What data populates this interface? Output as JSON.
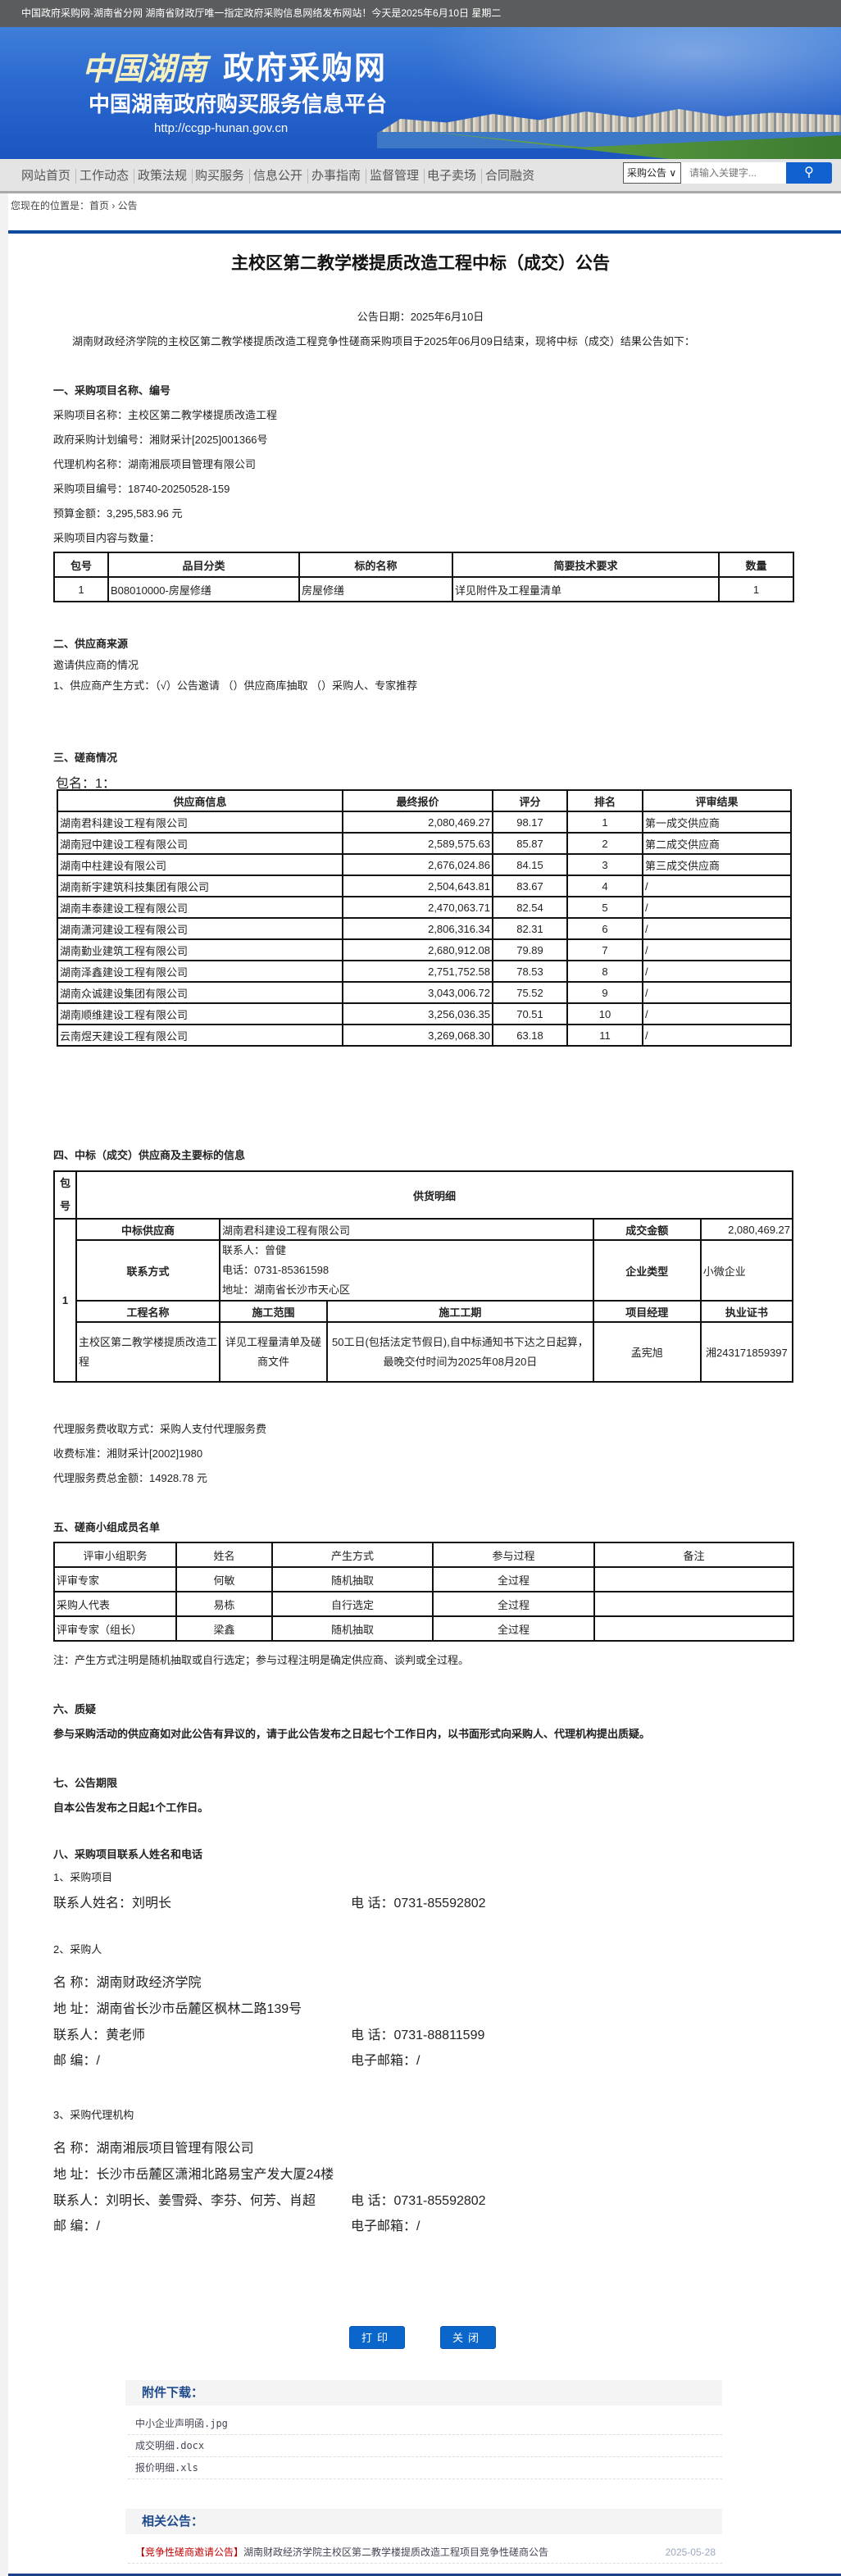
{
  "topbar": {
    "text": "中国政府采购网-湖南省分网  湖南省财政厅唯一指定政府采购信息网络发布网站！今天是2025年6月10日  星期二"
  },
  "banner": {
    "logo_calligraphy": "中国湖南",
    "title": "政府采购网",
    "subtitle": "中国湖南政府购买服务信息平台",
    "url": "http://ccgp-hunan.gov.cn"
  },
  "nav": {
    "items": [
      "网站首页",
      "工作动态",
      "政策法规",
      "购买服务",
      "信息公开",
      "办事指南",
      "监督管理",
      "电子卖场",
      "合同融资"
    ]
  },
  "search": {
    "select": "采购公告 ∨",
    "placeholder": "请输入关键字...",
    "icon": "search-icon"
  },
  "breadcrumb": {
    "text": "您现在的位置是：首页 › 公告"
  },
  "notice": {
    "title": "主校区第二教学楼提质改造工程中标（成交）公告",
    "date": "公告日期：2025年6月10日",
    "intro": "湖南财政经济学院的主校区第二教学楼提质改造工程竞争性磋商采购项目于2025年06月09日结束，现将中标（成交）结果公告如下：",
    "s1": {
      "heading": "一、采购项目名称、编号",
      "lines": [
        "采购项目名称：主校区第二教学楼提质改造工程",
        "政府采购计划编号：湘财采计[2025]001366号",
        "代理机构名称：湖南湘辰项目管理有限公司",
        "采购项目编号：18740-20250528-159",
        "预算金额：3,295,583.96 元",
        "采购项目内容与数量："
      ],
      "table": {
        "headers": [
          "包号",
          "品目分类",
          "标的名称",
          "简要技术要求",
          "数量"
        ],
        "rows": [
          [
            "1",
            "B08010000-房屋修缮",
            "房屋修缮",
            "详见附件及工程量清单",
            "1"
          ]
        ]
      }
    },
    "s2": {
      "heading": "二、供应商来源",
      "lines": [
        "邀请供应商的情况",
        "1、供应商产生方式：（√）公告邀请 （）供应商库抽取 （）采购人、专家推荐"
      ]
    },
    "s3": {
      "heading": "三、磋商情况",
      "package": "包名：1：",
      "table": {
        "headers": [
          "供应商信息",
          "最终报价",
          "评分",
          "排名",
          "评审结果"
        ],
        "rows": [
          [
            "湖南君科建设工程有限公司",
            "2,080,469.27",
            "98.17",
            "1",
            "第一成交供应商"
          ],
          [
            "湖南冠中建设工程有限公司",
            "2,589,575.63",
            "85.87",
            "2",
            "第二成交供应商"
          ],
          [
            "湖南中柱建设有限公司",
            "2,676,024.86",
            "84.15",
            "3",
            "第三成交供应商"
          ],
          [
            "湖南新宇建筑科技集团有限公司",
            "2,504,643.81",
            "83.67",
            "4",
            "/"
          ],
          [
            "湖南丰泰建设工程有限公司",
            "2,470,063.71",
            "82.54",
            "5",
            "/"
          ],
          [
            "湖南潇河建设工程有限公司",
            "2,806,316.34",
            "82.31",
            "6",
            "/"
          ],
          [
            "湖南勤业建筑工程有限公司",
            "2,680,912.08",
            "79.89",
            "7",
            "/"
          ],
          [
            "湖南泽鑫建设工程有限公司",
            "2,751,752.58",
            "78.53",
            "8",
            "/"
          ],
          [
            "湖南众诚建设集团有限公司",
            "3,043,006.72",
            "75.52",
            "9",
            "/"
          ],
          [
            "湖南顺维建设工程有限公司",
            "3,256,036.35",
            "70.51",
            "10",
            "/"
          ],
          [
            "云南煜天建设工程有限公司",
            "3,269,068.30",
            "63.18",
            "11",
            "/"
          ]
        ]
      }
    },
    "s4": {
      "heading": "四、中标（成交）供应商及主要标的信息",
      "table": {
        "pkg_header": "包号",
        "detail_header": "供货明细",
        "pkg": "1",
        "supplier_label": "中标供应商",
        "supplier": "湖南君科建设工程有限公司",
        "amount_label": "成交金额",
        "amount": "2,080,469.27",
        "contact_label": "联系方式",
        "contact": [
          "联系人：曾健",
          "电话：0731-85361598",
          "地址：湖南省长沙市天心区"
        ],
        "type_label": "企业类型",
        "type": "小微企业",
        "sub_headers": [
          "工程名称",
          "施工范围",
          "施工工期",
          "项目经理",
          "执业证书"
        ],
        "sub_row": [
          "主校区第二教学楼提质改造工程",
          "详见工程量清单及磋商文件",
          "50工日(包括法定节假日),自中标通知书下达之日起算，最晚交付时间为2025年08月20日",
          "孟宪旭",
          "湘243171859397"
        ]
      },
      "fee_lines": [
        "代理服务费收取方式：采购人支付代理服务费",
        "收费标准：湘财采计[2002]1980",
        "代理服务费总金额：14928.78 元"
      ]
    },
    "s5": {
      "heading": "五、磋商小组成员名单",
      "table": {
        "headers": [
          "评审小组职务",
          "姓名",
          "产生方式",
          "参与过程",
          "备注"
        ],
        "rows": [
          [
            "评审专家",
            "何敏",
            "随机抽取",
            "全过程",
            ""
          ],
          [
            "采购人代表",
            "易栋",
            "自行选定",
            "全过程",
            ""
          ],
          [
            "评审专家（组长）",
            "梁鑫",
            "随机抽取",
            "全过程",
            ""
          ]
        ]
      },
      "note": "注：产生方式注明是随机抽取或自行选定；参与过程注明是确定供应商、谈判或全过程。"
    },
    "s6": {
      "heading": "六、质疑",
      "text": "参与采购活动的供应商如对此公告有异议的，请于此公告发布之日起七个工作日内，以书面形式向采购人、代理机构提出质疑。"
    },
    "s7": {
      "heading": "七、公告期限",
      "text": "自本公告发布之日起1个工作日。"
    },
    "s8": {
      "heading": "八、采购项目联系人姓名和电话",
      "project": {
        "label": "1、采购项目",
        "contact": "联系人姓名：刘明长",
        "phone": "电 话：0731-85592802"
      },
      "buyer": {
        "label": "2、采购人",
        "name": "名 称：湖南财政经济学院",
        "address": "地 址：湖南省长沙市岳麓区枫林二路139号",
        "contact": "联系人：黄老师",
        "phone": "电 话：0731-88811599",
        "postcode": "邮 编：/",
        "email": "电子邮箱：/"
      },
      "agency": {
        "label": "3、采购代理机构",
        "name": "名 称：湖南湘辰项目管理有限公司",
        "address": "地 址：长沙市岳麓区潇湘北路易宝产发大厦24楼",
        "contact": "联系人：刘明长、姜雪舜、李芬、何芳、肖超",
        "phone": "电 话：0731-85592802",
        "postcode": "邮 编：/",
        "email": "电子邮箱：/"
      }
    }
  },
  "buttons": {
    "print": "打印",
    "close": "关闭"
  },
  "attachments": {
    "title": "附件下载：",
    "items": [
      "中小企业声明函.jpg",
      "成交明细.docx",
      "报价明细.xls"
    ]
  },
  "related": {
    "title": "相关公告：",
    "items": [
      {
        "tag": "【竞争性磋商邀请公告】",
        "text": "湖南财政经济学院主校区第二教学楼提质改造工程项目竞争性磋商公告",
        "date": "2025-05-28"
      }
    ]
  },
  "colors": {
    "accent": "#0b66cc",
    "nav_bg": "#e4e4e4",
    "topbar": "#5b5c5e",
    "tag_red": "#c00000"
  }
}
